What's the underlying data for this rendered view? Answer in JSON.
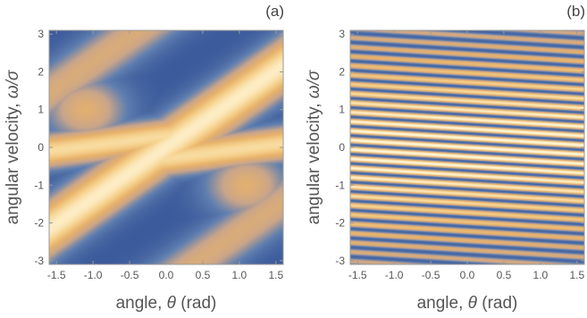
{
  "chart_data": [
    {
      "type": "heatmap",
      "panel_label": "(a)",
      "xlabel_prefix": "angle, ",
      "xlabel_symbol": "θ",
      "xlabel_suffix": " (rad)",
      "ylabel_prefix": "angular velocity, ",
      "ylabel_symbol": "ω/σ",
      "xlim": [
        -1.6,
        1.6
      ],
      "ylim": [
        -3.1,
        3.1
      ],
      "xticks": [
        -1.5,
        -1.0,
        -0.5,
        0.0,
        0.5,
        1.0,
        1.5
      ],
      "xtick_labels": [
        "-1.5",
        "-1.0",
        "-0.5",
        "0.0",
        "0.5",
        "1.0",
        "1.5"
      ],
      "yticks": [
        -3,
        -2,
        -1,
        0,
        1,
        2,
        3
      ],
      "ytick_labels": [
        "-3",
        "-2",
        "-1",
        "0",
        "1",
        "2",
        "3"
      ],
      "colormap": [
        "#3b5a9b",
        "#5f7fb0",
        "#c9a58a",
        "#e8b26a",
        "#f6d38f",
        "#fff5d6"
      ],
      "pattern": "smooth broad Z-shaped band (slope ~1.4, rising with θ) plus a flat band near ω≈0"
    },
    {
      "type": "heatmap",
      "panel_label": "(b)",
      "xlabel_prefix": "angle, ",
      "xlabel_symbol": "θ",
      "xlabel_suffix": " (rad)",
      "ylabel_prefix": "angular velocity, ",
      "ylabel_symbol": "ω/σ",
      "xlim": [
        -1.6,
        1.6
      ],
      "ylim": [
        -3.1,
        3.1
      ],
      "xticks": [
        -1.5,
        -1.0,
        -0.5,
        0.0,
        0.5,
        1.0,
        1.5
      ],
      "xtick_labels": [
        "-1.5",
        "-1.0",
        "-0.5",
        "0.0",
        "0.5",
        "1.0",
        "1.5"
      ],
      "yticks": [
        -3,
        -2,
        -1,
        0,
        1,
        2,
        3
      ],
      "ytick_labels": [
        "-3",
        "-2",
        "-1",
        "0",
        "1",
        "2",
        "3"
      ],
      "colormap": [
        "#3b5a9b",
        "#5f7fb0",
        "#c9a58a",
        "#e8b26a",
        "#f6d38f",
        "#fff5d6"
      ],
      "pattern": "dense near-horizontal fringes slightly tilted downward, bright near ω=0 and fading to blue at |ω|≈3"
    }
  ]
}
